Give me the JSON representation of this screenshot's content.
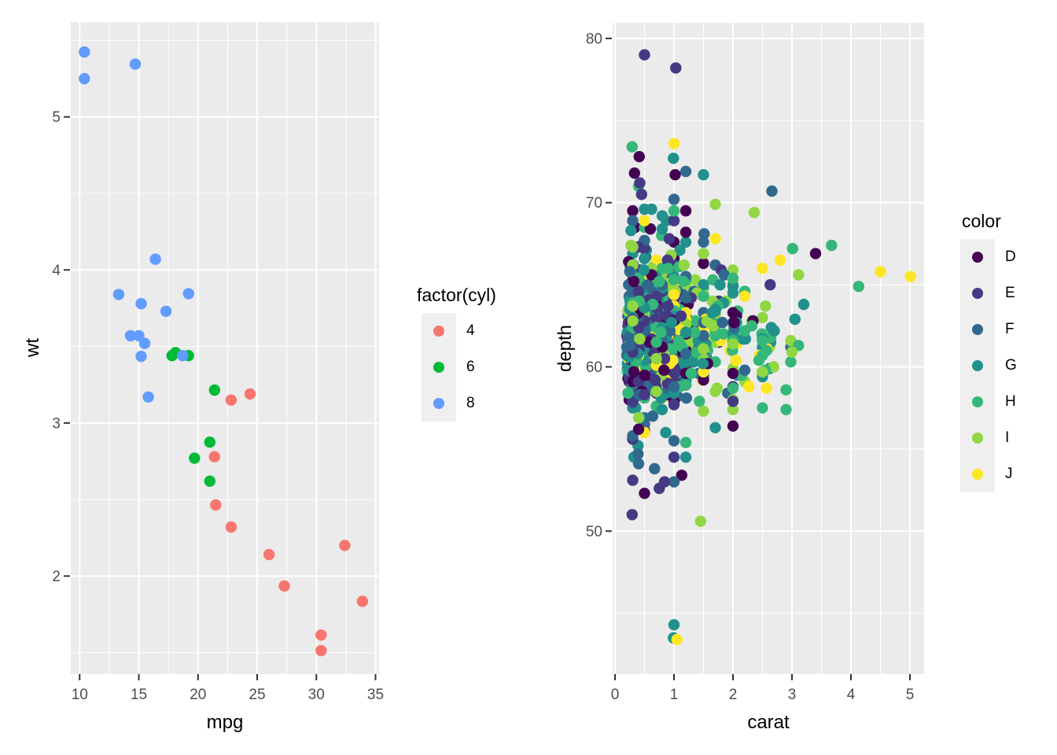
{
  "figure": {
    "background": "#FFFFFF",
    "panel_bg": "#EBEBEB",
    "grid_color": "#FFFFFF",
    "tick_color": "#333333",
    "tick_label_color": "#4D4D4D",
    "axis_title_color": "#000000",
    "legend_key_bg": "#EFEFEF"
  },
  "chart_data": [
    {
      "type": "scatter",
      "title": "",
      "xlabel": "mpg",
      "ylabel": "wt",
      "xlim": [
        9.25,
        35.3
      ],
      "ylim": [
        1.36,
        5.62
      ],
      "x_ticks": [
        10,
        15,
        20,
        25,
        30,
        35
      ],
      "x_minor": [
        12.5,
        17.5,
        22.5,
        27.5,
        32.5
      ],
      "y_ticks": [
        2,
        3,
        4,
        5
      ],
      "y_minor": [
        1.5,
        2.5,
        3.5,
        4.5,
        5.5
      ],
      "point_radius": 7.2,
      "legend": {
        "title": "factor(cyl)",
        "position": "right",
        "entries": [
          {
            "label": "4",
            "color": "#F8766D"
          },
          {
            "label": "6",
            "color": "#00BA38"
          },
          {
            "label": "8",
            "color": "#619CFF"
          }
        ]
      },
      "series": [
        {
          "name": "4",
          "color": "#F8766D",
          "points": [
            [
              22.8,
              2.32
            ],
            [
              24.4,
              3.19
            ],
            [
              22.8,
              3.15
            ],
            [
              32.4,
              2.2
            ],
            [
              30.4,
              1.615
            ],
            [
              33.9,
              1.835
            ],
            [
              21.5,
              2.465
            ],
            [
              27.3,
              1.935
            ],
            [
              26.0,
              2.14
            ],
            [
              30.4,
              1.513
            ],
            [
              21.4,
              2.78
            ]
          ]
        },
        {
          "name": "6",
          "color": "#00BA38",
          "points": [
            [
              21.0,
              2.62
            ],
            [
              21.0,
              2.875
            ],
            [
              21.4,
              3.215
            ],
            [
              18.1,
              3.46
            ],
            [
              19.2,
              3.44
            ],
            [
              17.8,
              3.44
            ],
            [
              19.7,
              2.77
            ]
          ]
        },
        {
          "name": "8",
          "color": "#619CFF",
          "points": [
            [
              18.7,
              3.44
            ],
            [
              14.3,
              3.57
            ],
            [
              16.4,
              4.07
            ],
            [
              17.3,
              3.73
            ],
            [
              15.2,
              3.78
            ],
            [
              10.4,
              5.25
            ],
            [
              10.4,
              5.424
            ],
            [
              14.7,
              5.345
            ],
            [
              15.5,
              3.52
            ],
            [
              15.2,
              3.435
            ],
            [
              13.3,
              3.84
            ],
            [
              19.2,
              3.845
            ],
            [
              15.8,
              3.17
            ],
            [
              15.0,
              3.57
            ]
          ]
        }
      ]
    },
    {
      "type": "scatter",
      "title": "",
      "xlabel": "carat",
      "ylabel": "depth",
      "xlim": [
        -0.04,
        5.24
      ],
      "ylim": [
        41.3,
        80.95
      ],
      "x_ticks": [
        0,
        1,
        2,
        3,
        4,
        5
      ],
      "x_minor": [
        0.5,
        1.5,
        2.5,
        3.5,
        4.5
      ],
      "y_ticks": [
        50,
        60,
        70,
        80
      ],
      "y_minor": [
        45,
        55,
        65,
        75
      ],
      "point_radius": 7.2,
      "legend": {
        "title": "color",
        "position": "right",
        "entries": [
          {
            "label": "D",
            "color": "#440154"
          },
          {
            "label": "E",
            "color": "#443983"
          },
          {
            "label": "F",
            "color": "#31688E"
          },
          {
            "label": "G",
            "color": "#21918C"
          },
          {
            "label": "H",
            "color": "#35B779"
          },
          {
            "label": "I",
            "color": "#90D743"
          },
          {
            "label": "J",
            "color": "#FDE725"
          }
        ]
      },
      "notable_points": [
        [
          0.5,
          79.0,
          "E"
        ],
        [
          1.03,
          78.2,
          "E"
        ],
        [
          1.0,
          73.6,
          "J"
        ],
        [
          0.99,
          72.7,
          "G"
        ],
        [
          1.02,
          71.7,
          "D"
        ],
        [
          0.33,
          71.8,
          "D"
        ],
        [
          0.42,
          71.2,
          "E"
        ],
        [
          1.0,
          44.3,
          "G"
        ],
        [
          0.99,
          43.5,
          "G"
        ],
        [
          1.05,
          43.4,
          "J"
        ],
        [
          1.45,
          50.6,
          "I"
        ],
        [
          0.29,
          51.0,
          "E"
        ],
        [
          0.75,
          52.6,
          "E"
        ],
        [
          0.5,
          52.3,
          "D"
        ],
        [
          5.01,
          65.5,
          "J"
        ],
        [
          4.5,
          65.8,
          "J"
        ],
        [
          4.13,
          64.9,
          "H"
        ],
        [
          3.67,
          67.4,
          "H"
        ],
        [
          3.4,
          66.9,
          "D"
        ],
        [
          3.01,
          67.2,
          "H"
        ],
        [
          3.11,
          65.6,
          "I"
        ],
        [
          2.8,
          66.5,
          "J"
        ],
        [
          3.05,
          62.9,
          "G"
        ],
        [
          3.0,
          60.9,
          "I"
        ],
        [
          2.9,
          57.4,
          "H"
        ],
        [
          3.2,
          63.8,
          "G"
        ]
      ],
      "cloud_model": {
        "seed": 7,
        "n": 1080,
        "carat_bins": [
          [
            0.2,
            0.42,
            0.3
          ],
          [
            0.42,
            0.62,
            0.15
          ],
          [
            0.62,
            0.88,
            0.14
          ],
          [
            0.88,
            1.22,
            0.2
          ],
          [
            1.22,
            1.62,
            0.1
          ],
          [
            1.62,
            2.12,
            0.07
          ],
          [
            2.12,
            2.72,
            0.032
          ],
          [
            2.72,
            3.28,
            0.008
          ]
        ],
        "popular_carats": [
          0.3,
          0.4,
          0.5,
          0.7,
          0.8,
          0.9,
          1.0,
          1.2,
          1.5,
          1.7,
          2.0,
          2.2,
          2.5
        ],
        "snap_prob": 0.5,
        "snap_window": 0.12,
        "depth_main": [
          61.7,
          1.85
        ],
        "depth_tail": [
          62.3,
          4.6
        ],
        "tail_frac": 0.2,
        "depth_min": 50.6,
        "depth_max": 73.4,
        "color_weights": {
          "D": 0.13,
          "E": 0.18,
          "F": 0.17,
          "G": 0.2,
          "H": 0.15,
          "I": 0.1,
          "J": 0.07
        },
        "color_weights_large": {
          "D": 0.05,
          "E": 0.07,
          "F": 0.1,
          "G": 0.2,
          "H": 0.22,
          "I": 0.19,
          "J": 0.17
        },
        "large_carat_threshold": 1.35
      }
    }
  ]
}
